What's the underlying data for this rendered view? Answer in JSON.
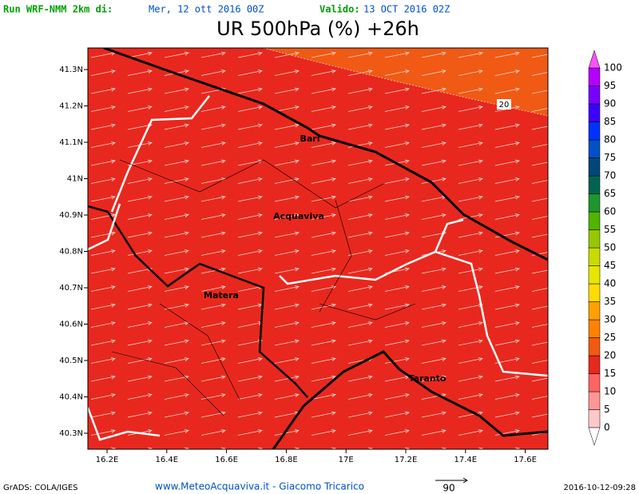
{
  "header": {
    "run_label": "Run WRF-NMM 2km di:",
    "run_date": "Mer, 12 ott 2016 00Z",
    "valid_label": "Valido:",
    "valid_date": "13 OCT 2016 02Z",
    "title": "UR 500hPa (%) +26h"
  },
  "map": {
    "lat_labels": [
      "41.3N",
      "41.2N",
      "41.1N",
      "41N",
      "40.9N",
      "40.8N",
      "40.7N",
      "40.6N",
      "40.5N",
      "40.4N",
      "40.3N"
    ],
    "lon_labels": [
      "16.2E",
      "16.4E",
      "16.6E",
      "16.8E",
      "17E",
      "17.2E",
      "17.4E",
      "17.6E"
    ],
    "cities": [
      "Bari",
      "Acquaviva",
      "Matera",
      "Taranto"
    ],
    "contour_label": "20"
  },
  "colorbar": {
    "labels": [
      0,
      5,
      10,
      15,
      20,
      25,
      30,
      35,
      40,
      45,
      50,
      55,
      60,
      65,
      70,
      75,
      80,
      85,
      90,
      95,
      100
    ],
    "colors": [
      "#ffc8c8",
      "#ff9696",
      "#ff6464",
      "#e8281e",
      "#f05a14",
      "#ff8200",
      "#ffa000",
      "#ffdc00",
      "#e6e600",
      "#c8dc00",
      "#96c800",
      "#50b400",
      "#1e962d",
      "#006450",
      "#004678",
      "#0050c8",
      "#0032ff",
      "#3c00ff",
      "#7800ff",
      "#b400ff"
    ],
    "below_color": "#ffffff",
    "above_color": "#ff50ff"
  },
  "footer": {
    "left": "GrADS: COLA/IGES",
    "center": "www.MeteoAcquaviva.it - Giacomo Tricarico",
    "vector_scale": "90",
    "timestamp": "2016-10-12-09:28"
  }
}
